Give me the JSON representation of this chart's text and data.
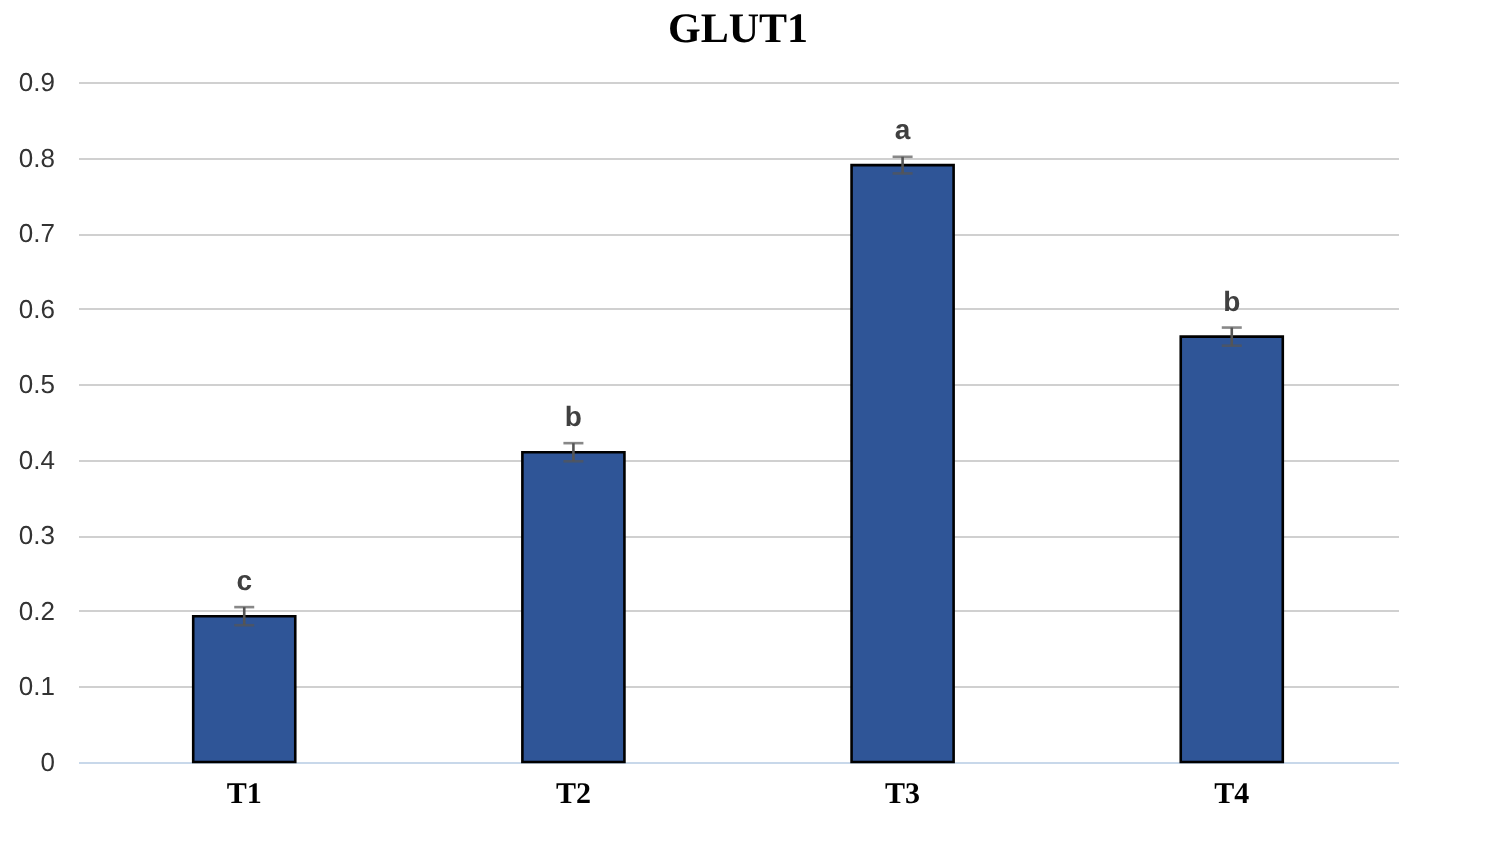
{
  "chart_data": {
    "type": "bar",
    "title": "GLUT1",
    "categories": [
      "T1",
      "T2",
      "T3",
      "T4"
    ],
    "values": [
      0.193,
      0.41,
      0.79,
      0.563
    ],
    "errors": [
      0.012,
      0.012,
      0.011,
      0.012
    ],
    "color": "#2f5597",
    "ylim": [
      0,
      0.9
    ],
    "yticks": [
      {
        "value": 0,
        "label": "0"
      },
      0.1,
      0.2,
      0.3,
      0.4,
      0.5,
      0.6,
      0.7,
      0.8,
      0.9
    ],
    "grid": "y",
    "annotations": [
      {
        "text": "c",
        "x": "T1",
        "y": 0.193
      },
      {
        "text": "b",
        "x": "T2",
        "y": 0.41
      },
      {
        "text": "a",
        "x": "T3",
        "y": 0.79
      },
      {
        "text": "b",
        "x": "T4",
        "y": 0.563
      }
    ]
  }
}
